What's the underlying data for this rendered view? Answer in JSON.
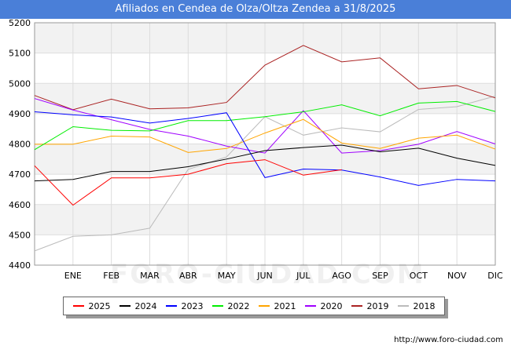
{
  "title": "Afiliados en Cendea de Olza/Oltza Zendea a 31/8/2025",
  "source": "http://www.foro-ciudad.com",
  "watermark": "FORO-CIUDAD.COM",
  "chart_data": {
    "type": "line",
    "title": "Afiliados en Cendea de Olza/Oltza Zendea a 31/8/2025",
    "xlabel": "",
    "ylabel": "",
    "x_labels": [
      "",
      "ENE",
      "FEB",
      "MAR",
      "ABR",
      "MAY",
      "JUN",
      "JUL",
      "AGO",
      "SEP",
      "OCT",
      "NOV",
      "DIC"
    ],
    "ylim": [
      4400,
      5200
    ],
    "yticks": [
      4400,
      4500,
      4600,
      4700,
      4800,
      4900,
      5000,
      5100,
      5200
    ],
    "grid": true,
    "legend_position": "bottom",
    "series": [
      {
        "name": "2025",
        "color": "#ff0000",
        "values": [
          4728,
          4598,
          4688,
          4688,
          4700,
          4735,
          4748,
          4697,
          4715
        ]
      },
      {
        "name": "2024",
        "color": "#000000",
        "values": [
          4678,
          4683,
          4709,
          4709,
          4725,
          4750,
          4778,
          4788,
          4796,
          4774,
          4786,
          4753,
          4729
        ]
      },
      {
        "name": "2023",
        "color": "#0000ff",
        "values": [
          4906,
          4896,
          4889,
          4869,
          4884,
          4903,
          4689,
          4717,
          4714,
          4691,
          4663,
          4683,
          4678
        ]
      },
      {
        "name": "2022",
        "color": "#00ee00",
        "values": [
          4781,
          4857,
          4845,
          4843,
          4877,
          4877,
          4890,
          4906,
          4929,
          4893,
          4935,
          4940,
          4907
        ]
      },
      {
        "name": "2021",
        "color": "#ffa500",
        "values": [
          4799,
          4799,
          4826,
          4823,
          4772,
          4785,
          4836,
          4881,
          4803,
          4785,
          4819,
          4829,
          4783
        ]
      },
      {
        "name": "2020",
        "color": "#a000ff",
        "values": [
          4950,
          4912,
          4880,
          4848,
          4826,
          4793,
          4770,
          4910,
          4770,
          4778,
          4799,
          4841,
          4800
        ]
      },
      {
        "name": "2019",
        "color": "#aa2222",
        "values": [
          4960,
          4913,
          4948,
          4916,
          4919,
          4937,
          5060,
          5125,
          5071,
          5084,
          4982,
          4993,
          4952
        ]
      },
      {
        "name": "2018",
        "color": "#bbbbbb",
        "values": [
          4447,
          4495,
          4500,
          4522,
          4716,
          4757,
          4890,
          4829,
          4853,
          4840,
          4914,
          4923,
          4958
        ]
      }
    ]
  }
}
